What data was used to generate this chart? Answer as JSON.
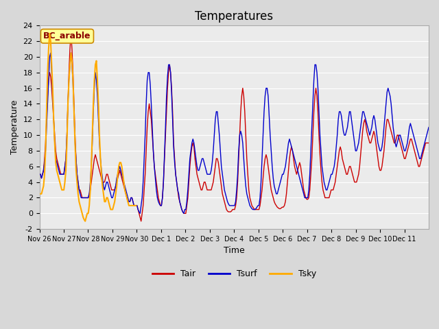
{
  "title": "Temperatures",
  "xlabel": "Time",
  "ylabel": "Temperature",
  "ylim": [
    -2,
    24
  ],
  "annotation": "BC_arable",
  "legend_labels": [
    "Tair",
    "Tsurf",
    "Tsky"
  ],
  "tair_color": "#cc0000",
  "tsurf_color": "#0000cc",
  "tsky_color": "#ffaa00",
  "fig_facecolor": "#d8d8d8",
  "ax_facecolor": "#ebebeb",
  "grid_color": "#ffffff",
  "xtick_labels": [
    "Nov 26",
    "Nov 27",
    "Nov 28",
    "Nov 29",
    "Nov 30",
    "Dec 1",
    "Dec 2",
    "Dec 3",
    "Dec 4",
    "Dec 5",
    "Dec 6",
    "Dec 7",
    "Dec 8",
    "Dec 9",
    "Dec 10",
    "Dec 11"
  ],
  "ytick_values": [
    -2,
    0,
    2,
    4,
    6,
    8,
    10,
    12,
    14,
    16,
    18,
    20,
    22,
    24
  ]
}
